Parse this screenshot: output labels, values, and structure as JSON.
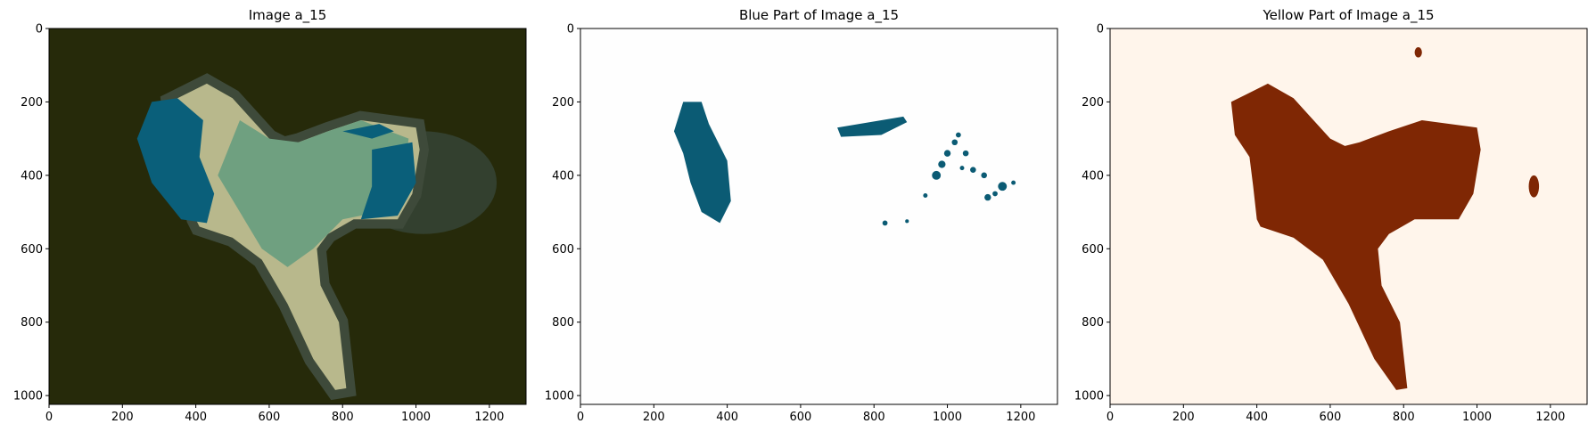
{
  "chart_data": [
    {
      "type": "image",
      "title": "Image a_15",
      "xlim": [
        0,
        1300
      ],
      "ylim": [
        1024,
        0
      ],
      "xticks": [
        0,
        200,
        400,
        600,
        800,
        1000,
        1200
      ],
      "yticks": [
        0,
        200,
        400,
        600,
        800,
        1000
      ]
    },
    {
      "type": "image",
      "title": "Blue Part of Image a_15",
      "xlim": [
        0,
        1300
      ],
      "ylim": [
        1024,
        0
      ],
      "xticks": [
        0,
        200,
        400,
        600,
        800,
        1000,
        1200
      ],
      "yticks": [
        0,
        200,
        400,
        600,
        800,
        1000
      ]
    },
    {
      "type": "image",
      "title": "Yellow Part of Image a_15",
      "xlim": [
        0,
        1300
      ],
      "ylim": [
        1024,
        0
      ],
      "xticks": [
        0,
        200,
        400,
        600,
        800,
        1000,
        1200
      ],
      "yticks": [
        0,
        200,
        400,
        600,
        800,
        1000
      ]
    }
  ]
}
